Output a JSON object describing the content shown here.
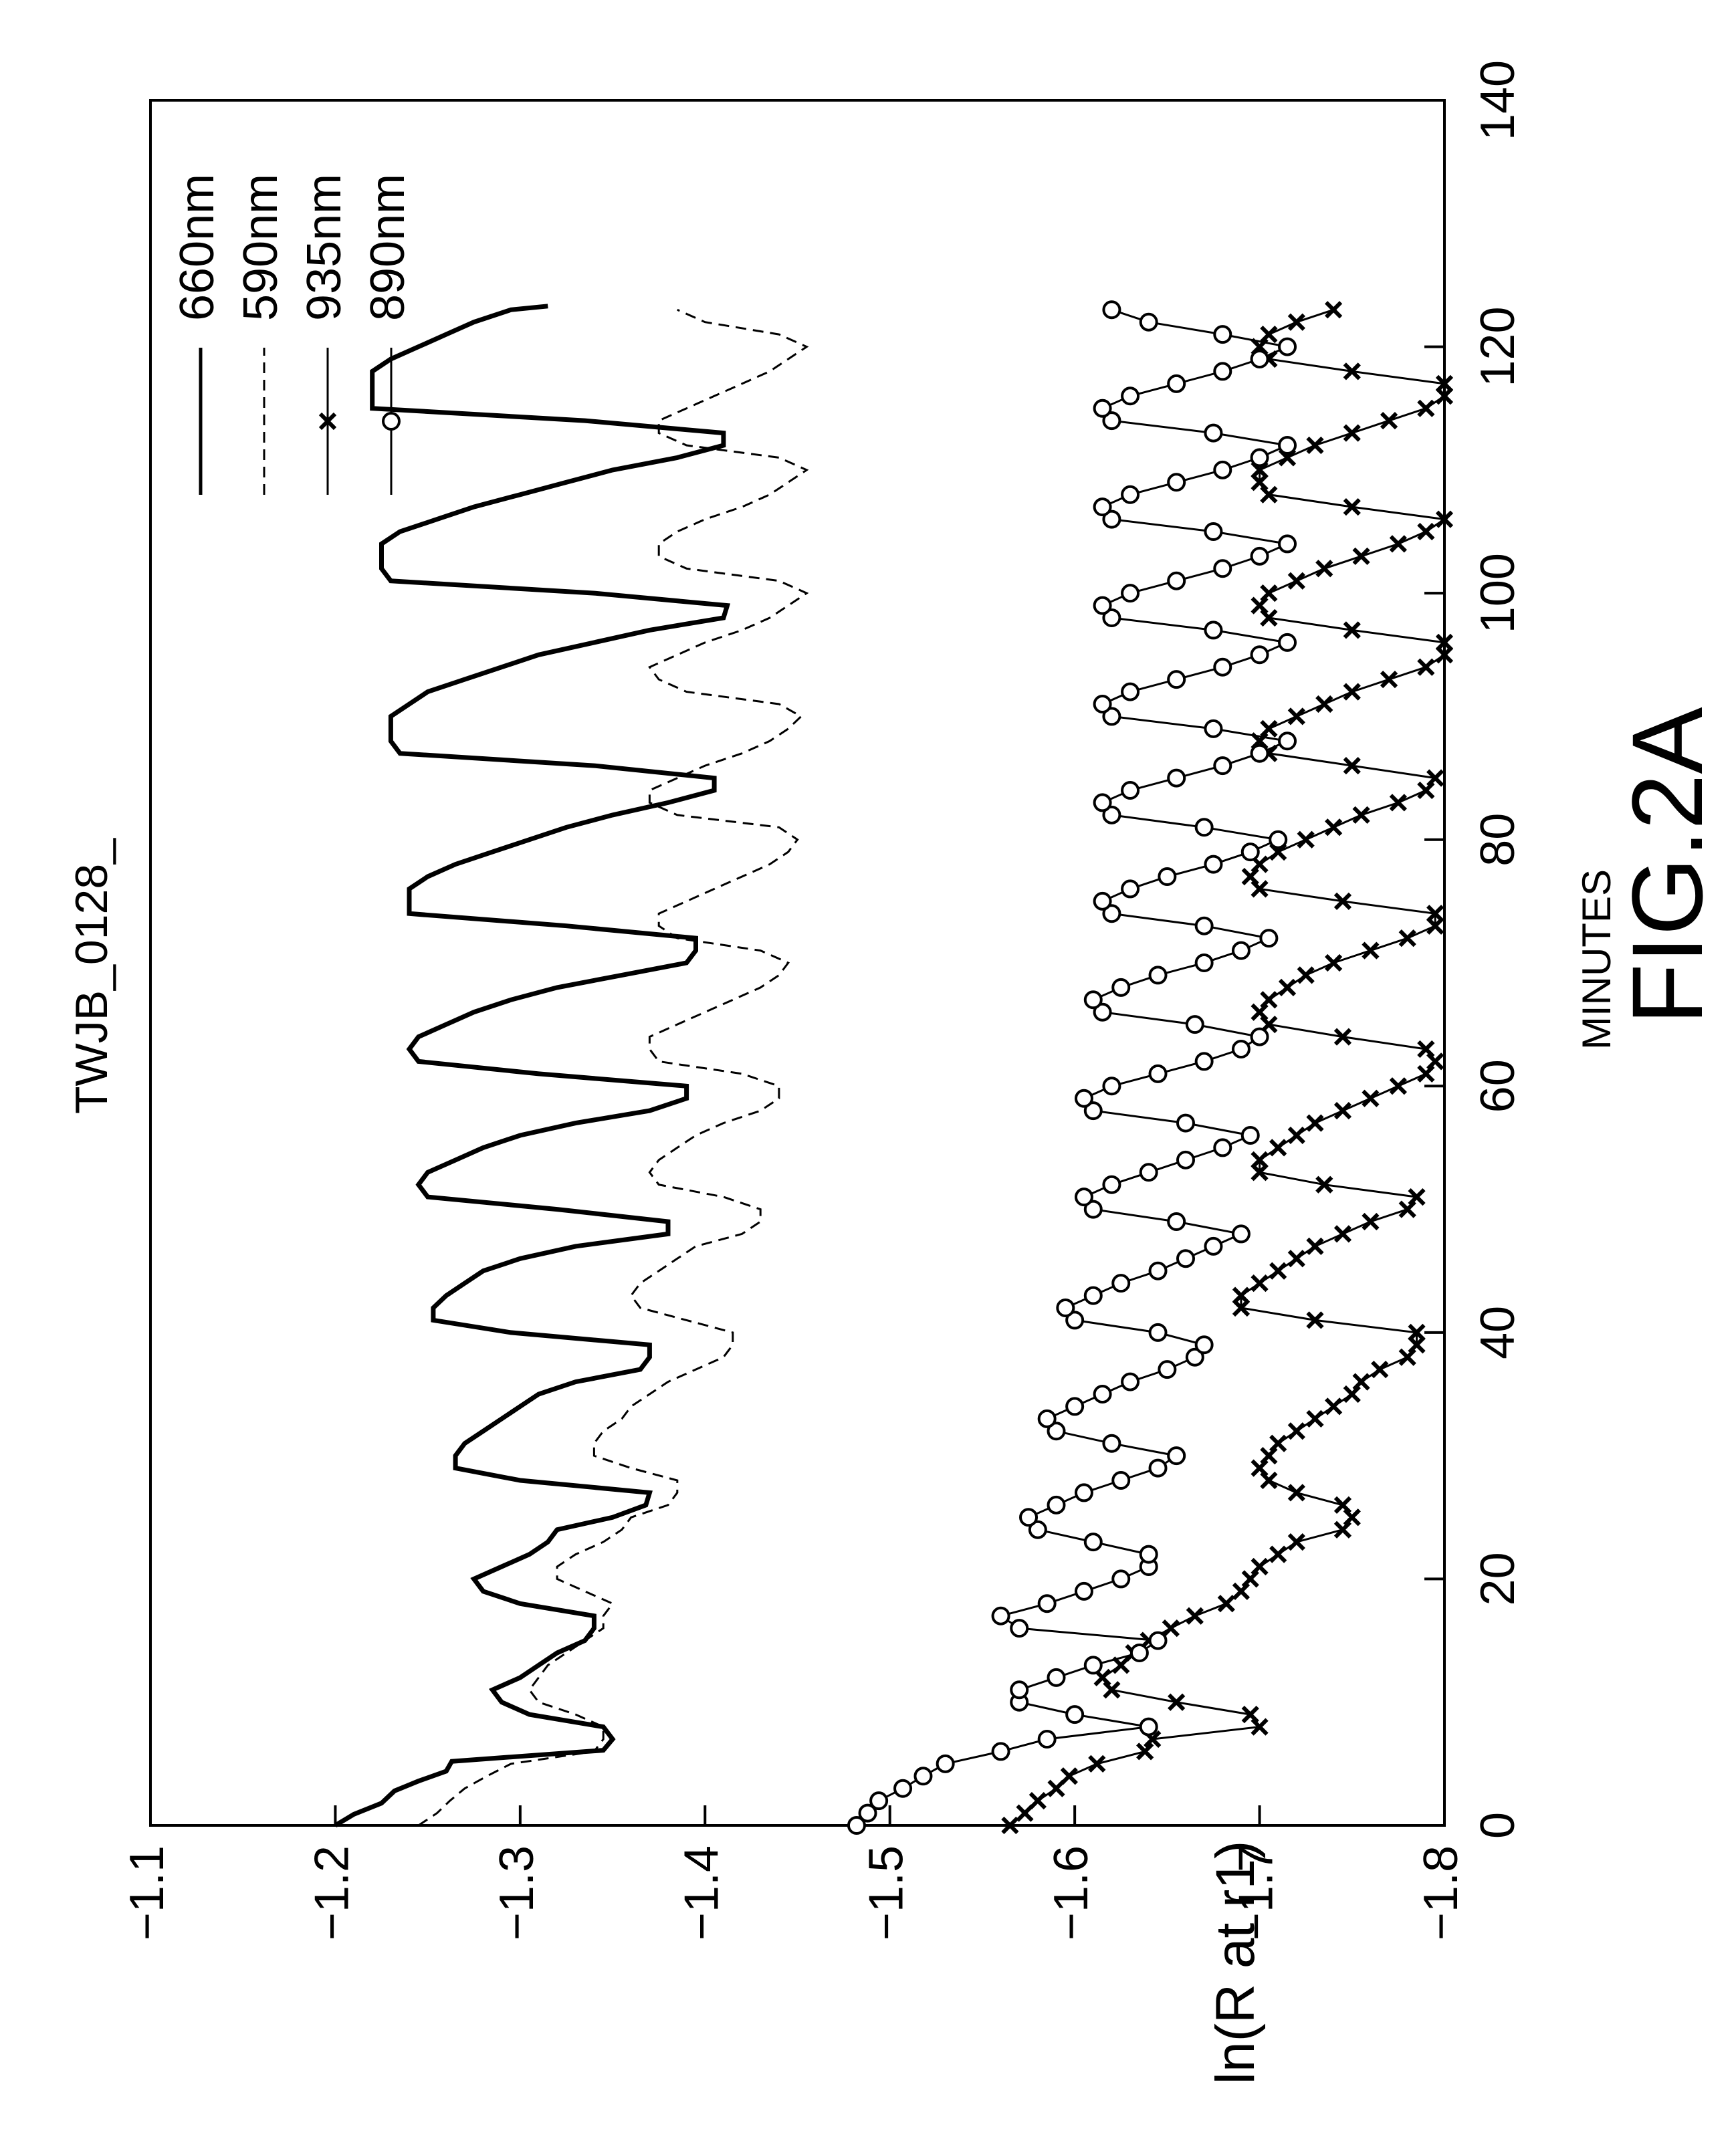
{
  "figure_label": "FIG.2A",
  "chart_data": {
    "type": "line",
    "title": "TWJB_0128_",
    "xlabel": "MINUTES",
    "ylabel": "ln(R at r1)",
    "xlim": [
      0,
      140
    ],
    "ylim": [
      -1.8,
      -1.1
    ],
    "x_ticks": [
      "0",
      "20",
      "40",
      "60",
      "80",
      "100",
      "120",
      "140"
    ],
    "y_ticks": [
      "-1.1",
      "-1.2",
      "-1.3",
      "-1.4",
      "-1.5",
      "-1.6",
      "-1.7",
      "-1.8"
    ],
    "grid": false,
    "orientation": "rotated-90-counterclockwise",
    "legend_position": "top-right",
    "series": [
      {
        "name": "660nm",
        "style": "solid-thick",
        "x": [
          0,
          0.9,
          1.8,
          2.8,
          3.6,
          4.4,
          5.2,
          6.1,
          7,
          8,
          9,
          10,
          11,
          12,
          13,
          14,
          15,
          16,
          17,
          18,
          19,
          20,
          21,
          22,
          23,
          24,
          25,
          26,
          27,
          28,
          29,
          30,
          31,
          32,
          33,
          34,
          35,
          36,
          37,
          38,
          39,
          40,
          41,
          42,
          43,
          44,
          45,
          46,
          47,
          48,
          49,
          50,
          51,
          52,
          53,
          54,
          55,
          56,
          57,
          58,
          59,
          60,
          61,
          62,
          63,
          64,
          65,
          66,
          67,
          68,
          69,
          70,
          71,
          72,
          73,
          74,
          75,
          76,
          77,
          78,
          79,
          80,
          81,
          82,
          83,
          84,
          85,
          86,
          87,
          88,
          89,
          90,
          91,
          92,
          93,
          94,
          95,
          96,
          97,
          98,
          99,
          100,
          101,
          102,
          103,
          104,
          105,
          106,
          107,
          108,
          109,
          110,
          111,
          112,
          113,
          114,
          115,
          116,
          117,
          118,
          119,
          120,
          121,
          122,
          123,
          123.3
        ],
        "y": [
          -1.2,
          -1.21,
          -1.225,
          -1.232,
          -1.245,
          -1.26,
          -1.263,
          -1.345,
          -1.35,
          -1.345,
          -1.305,
          -1.29,
          -1.285,
          -1.3,
          -1.31,
          -1.32,
          -1.335,
          -1.34,
          -1.34,
          -1.3,
          -1.28,
          -1.275,
          -1.29,
          -1.305,
          -1.315,
          -1.32,
          -1.35,
          -1.368,
          -1.37,
          -1.3,
          -1.265,
          -1.265,
          -1.27,
          -1.28,
          -1.29,
          -1.3,
          -1.31,
          -1.33,
          -1.365,
          -1.37,
          -1.37,
          -1.295,
          -1.253,
          -1.253,
          -1.26,
          -1.27,
          -1.28,
          -1.3,
          -1.33,
          -1.38,
          -1.38,
          -1.32,
          -1.25,
          -1.245,
          -1.25,
          -1.265,
          -1.28,
          -1.3,
          -1.33,
          -1.37,
          -1.39,
          -1.39,
          -1.31,
          -1.245,
          -1.24,
          -1.245,
          -1.26,
          -1.275,
          -1.295,
          -1.32,
          -1.355,
          -1.39,
          -1.395,
          -1.395,
          -1.325,
          -1.24,
          -1.24,
          -1.24,
          -1.25,
          -1.265,
          -1.285,
          -1.305,
          -1.325,
          -1.35,
          -1.38,
          -1.405,
          -1.405,
          -1.34,
          -1.235,
          -1.23,
          -1.23,
          -1.23,
          -1.24,
          -1.25,
          -1.27,
          -1.29,
          -1.31,
          -1.34,
          -1.37,
          -1.41,
          -1.412,
          -1.34,
          -1.23,
          -1.225,
          -1.225,
          -1.225,
          -1.235,
          -1.255,
          -1.275,
          -1.3,
          -1.325,
          -1.35,
          -1.385,
          -1.41,
          -1.41,
          -1.335,
          -1.22,
          -1.22,
          -1.22,
          -1.22,
          -1.23,
          -1.245,
          -1.26,
          -1.275,
          -1.295,
          -1.315
        ]
      },
      {
        "name": "590nm",
        "style": "dashed",
        "x": [
          0,
          1,
          2,
          3,
          4,
          5,
          6,
          7,
          8,
          9,
          10,
          11,
          12,
          13,
          14,
          15,
          16,
          17,
          18,
          19,
          20,
          21,
          22,
          23,
          24,
          25,
          26,
          27,
          28,
          29,
          30,
          31,
          32,
          33,
          34,
          35,
          36,
          37,
          38,
          39,
          40,
          41,
          42,
          43,
          44,
          45,
          46,
          47,
          48,
          49,
          50,
          51,
          52,
          53,
          54,
          55,
          56,
          57,
          58,
          59,
          60,
          61,
          62,
          63,
          64,
          65,
          66,
          67,
          68,
          69,
          70,
          71,
          72,
          73,
          74,
          75,
          76,
          77,
          78,
          79,
          80,
          81,
          82,
          83,
          84,
          85,
          86,
          87,
          88,
          89,
          90,
          91,
          92,
          93,
          94,
          95,
          96,
          97,
          98,
          99,
          100,
          101,
          102,
          103,
          104,
          105,
          106,
          107,
          108,
          109,
          110,
          111,
          112,
          113,
          114,
          115,
          116,
          117,
          118,
          119,
          120,
          121,
          122,
          123
        ],
        "y": [
          -1.245,
          -1.255,
          -1.262,
          -1.27,
          -1.282,
          -1.295,
          -1.34,
          -1.345,
          -1.345,
          -1.33,
          -1.31,
          -1.305,
          -1.31,
          -1.315,
          -1.325,
          -1.335,
          -1.345,
          -1.345,
          -1.35,
          -1.335,
          -1.32,
          -1.32,
          -1.33,
          -1.345,
          -1.355,
          -1.36,
          -1.38,
          -1.385,
          -1.385,
          -1.36,
          -1.34,
          -1.34,
          -1.345,
          -1.355,
          -1.36,
          -1.37,
          -1.38,
          -1.395,
          -1.41,
          -1.415,
          -1.415,
          -1.39,
          -1.365,
          -1.36,
          -1.365,
          -1.375,
          -1.385,
          -1.395,
          -1.42,
          -1.43,
          -1.43,
          -1.41,
          -1.375,
          -1.37,
          -1.375,
          -1.385,
          -1.395,
          -1.41,
          -1.43,
          -1.44,
          -1.44,
          -1.42,
          -1.375,
          -1.37,
          -1.37,
          -1.385,
          -1.4,
          -1.415,
          -1.43,
          -1.44,
          -1.445,
          -1.43,
          -1.385,
          -1.375,
          -1.375,
          -1.39,
          -1.405,
          -1.42,
          -1.435,
          -1.445,
          -1.45,
          -1.44,
          -1.385,
          -1.37,
          -1.37,
          -1.385,
          -1.4,
          -1.42,
          -1.435,
          -1.445,
          -1.452,
          -1.44,
          -1.39,
          -1.375,
          -1.37,
          -1.385,
          -1.4,
          -1.42,
          -1.435,
          -1.445,
          -1.455,
          -1.44,
          -1.39,
          -1.375,
          -1.375,
          -1.385,
          -1.4,
          -1.42,
          -1.435,
          -1.445,
          -1.455,
          -1.44,
          -1.39,
          -1.375,
          -1.375,
          -1.39,
          -1.405,
          -1.42,
          -1.435,
          -1.445,
          -1.455,
          -1.44,
          -1.4,
          -1.385
        ]
      },
      {
        "name": "935nm",
        "style": "solid-x-markers",
        "x": [
          0,
          1,
          2,
          3,
          4,
          5,
          6,
          7,
          8,
          9,
          10,
          11,
          12,
          13,
          14,
          15,
          16,
          17,
          18,
          19,
          20,
          21,
          22,
          23,
          24,
          25,
          26,
          27,
          28,
          29,
          30,
          31,
          32,
          33,
          34,
          35,
          36,
          37,
          38,
          39,
          40,
          41,
          42,
          43,
          44,
          45,
          46,
          47,
          48,
          49,
          50,
          51,
          52,
          53,
          54,
          55,
          56,
          57,
          58,
          59,
          60,
          61,
          62,
          63,
          64,
          65,
          66,
          67,
          68,
          69,
          70,
          71,
          72,
          73,
          74,
          75,
          76,
          77,
          78,
          79,
          80,
          81,
          82,
          83,
          84,
          85,
          86,
          87,
          88,
          89,
          90,
          91,
          92,
          93,
          94,
          95,
          96,
          97,
          98,
          99,
          100,
          101,
          102,
          103,
          104,
          105,
          106,
          107,
          108,
          109,
          110,
          111,
          112,
          113,
          114,
          115,
          116,
          117,
          118,
          119,
          120,
          121,
          122,
          123
        ],
        "y": [
          -1.565,
          -1.573,
          -1.58,
          -1.59,
          -1.597,
          -1.612,
          -1.638,
          -1.642,
          -1.7,
          -1.695,
          -1.655,
          -1.62,
          -1.615,
          -1.625,
          -1.632,
          -1.64,
          -1.652,
          -1.665,
          -1.682,
          -1.69,
          -1.695,
          -1.7,
          -1.71,
          -1.72,
          -1.745,
          -1.75,
          -1.745,
          -1.72,
          -1.705,
          -1.7,
          -1.705,
          -1.71,
          -1.72,
          -1.73,
          -1.74,
          -1.75,
          -1.755,
          -1.765,
          -1.78,
          -1.785,
          -1.785,
          -1.73,
          -1.69,
          -1.69,
          -1.7,
          -1.71,
          -1.72,
          -1.73,
          -1.745,
          -1.76,
          -1.78,
          -1.785,
          -1.735,
          -1.7,
          -1.7,
          -1.71,
          -1.72,
          -1.73,
          -1.745,
          -1.76,
          -1.775,
          -1.79,
          -1.795,
          -1.79,
          -1.745,
          -1.705,
          -1.7,
          -1.705,
          -1.715,
          -1.725,
          -1.74,
          -1.76,
          -1.78,
          -1.795,
          -1.795,
          -1.745,
          -1.7,
          -1.695,
          -1.7,
          -1.71,
          -1.725,
          -1.74,
          -1.755,
          -1.775,
          -1.79,
          -1.795,
          -1.75,
          -1.705,
          -1.7,
          -1.705,
          -1.72,
          -1.735,
          -1.75,
          -1.77,
          -1.79,
          -1.8,
          -1.8,
          -1.75,
          -1.705,
          -1.7,
          -1.705,
          -1.72,
          -1.735,
          -1.755,
          -1.775,
          -1.79,
          -1.8,
          -1.75,
          -1.705,
          -1.7,
          -1.7,
          -1.715,
          -1.73,
          -1.75,
          -1.77,
          -1.79,
          -1.8,
          -1.8,
          -1.75,
          -1.705,
          -1.7,
          -1.705,
          -1.72,
          -1.74
        ]
      },
      {
        "name": "890nm",
        "style": "solid-circle-markers",
        "x": [
          0,
          1,
          2,
          3,
          4,
          5,
          6,
          7,
          8,
          9,
          10,
          11,
          12,
          13,
          14,
          15,
          16,
          17,
          18,
          19,
          20,
          21,
          22,
          23,
          24,
          25,
          26,
          27,
          28,
          29,
          30,
          31,
          32,
          33,
          34,
          35,
          36,
          37,
          38,
          39,
          40,
          41,
          42,
          43,
          44,
          45,
          46,
          47,
          48,
          49,
          50,
          51,
          52,
          53,
          54,
          55,
          56,
          57,
          58,
          59,
          60,
          61,
          62,
          63,
          64,
          65,
          66,
          67,
          68,
          69,
          70,
          71,
          72,
          73,
          74,
          75,
          76,
          77,
          78,
          79,
          80,
          81,
          82,
          83,
          84,
          85,
          86,
          87,
          88,
          89,
          90,
          91,
          92,
          93,
          94,
          95,
          96,
          97,
          98,
          99,
          100,
          101,
          102,
          103,
          104,
          105,
          106,
          107,
          108,
          109,
          110,
          111,
          112,
          113,
          114,
          115,
          116,
          117,
          118,
          119,
          120,
          121,
          122,
          123
        ],
        "y": [
          -1.482,
          -1.488,
          -1.494,
          -1.507,
          -1.518,
          -1.53,
          -1.56,
          -1.585,
          -1.64,
          -1.6,
          -1.57,
          -1.57,
          -1.59,
          -1.61,
          -1.635,
          -1.645,
          -1.57,
          -1.56,
          -1.585,
          -1.605,
          -1.625,
          -1.64,
          -1.64,
          -1.61,
          -1.58,
          -1.575,
          -1.59,
          -1.605,
          -1.625,
          -1.645,
          -1.655,
          -1.62,
          -1.59,
          -1.585,
          -1.6,
          -1.615,
          -1.63,
          -1.65,
          -1.665,
          -1.67,
          -1.645,
          -1.6,
          -1.595,
          -1.61,
          -1.625,
          -1.645,
          -1.66,
          -1.675,
          -1.69,
          -1.655,
          -1.61,
          -1.605,
          -1.62,
          -1.64,
          -1.66,
          -1.68,
          -1.695,
          -1.66,
          -1.61,
          -1.605,
          -1.62,
          -1.645,
          -1.67,
          -1.69,
          -1.7,
          -1.665,
          -1.615,
          -1.61,
          -1.625,
          -1.645,
          -1.67,
          -1.69,
          -1.705,
          -1.67,
          -1.62,
          -1.615,
          -1.63,
          -1.65,
          -1.675,
          -1.695,
          -1.71,
          -1.67,
          -1.62,
          -1.615,
          -1.63,
          -1.655,
          -1.68,
          -1.7,
          -1.715,
          -1.675,
          -1.62,
          -1.615,
          -1.63,
          -1.655,
          -1.68,
          -1.7,
          -1.715,
          -1.675,
          -1.62,
          -1.615,
          -1.63,
          -1.655,
          -1.68,
          -1.7,
          -1.715,
          -1.675,
          -1.62,
          -1.615,
          -1.63,
          -1.655,
          -1.68,
          -1.7,
          -1.715,
          -1.675,
          -1.62,
          -1.615,
          -1.63,
          -1.655,
          -1.68,
          -1.7,
          -1.715,
          -1.68,
          -1.64,
          -1.62
        ]
      }
    ]
  }
}
